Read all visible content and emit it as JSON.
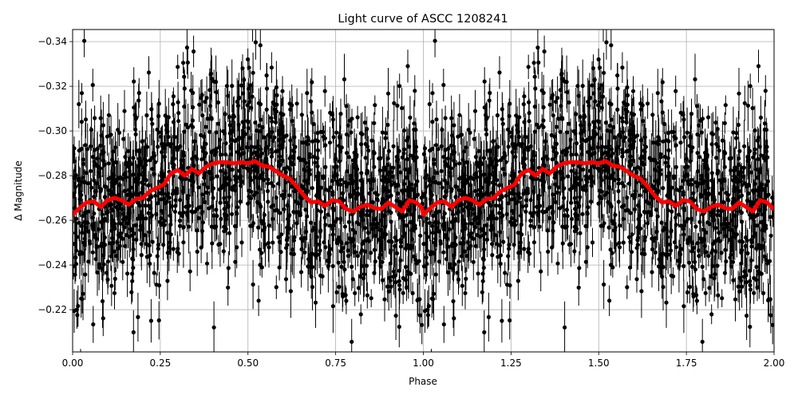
{
  "chart_data": {
    "type": "scatter",
    "title": "Light curve of ASCC 1208241",
    "xlabel": "Phase",
    "ylabel": "Δ Magnitude",
    "xlim": [
      0.0,
      2.0
    ],
    "ylim": [
      -0.3454,
      -0.2011
    ],
    "y_inverted": true,
    "grid": true,
    "legend": null,
    "xticks": [
      0.0,
      0.25,
      0.5,
      0.75,
      1.0,
      1.25,
      1.5,
      1.75,
      2.0
    ],
    "xtick_labels": [
      "0.00",
      "0.25",
      "0.50",
      "0.75",
      "1.00",
      "1.25",
      "1.50",
      "1.75",
      "2.00"
    ],
    "yticks": [
      -0.34,
      -0.32,
      -0.3,
      -0.28,
      -0.26,
      -0.24,
      -0.22
    ],
    "ytick_labels": [
      "−0.34",
      "−0.32",
      "−0.30",
      "−0.28",
      "−0.26",
      "−0.24",
      "−0.22"
    ],
    "series": [
      {
        "name": "observations",
        "kind": "errorbar-scatter",
        "color": "#000000",
        "description": "Dense phase-folded photometry with vertical error bars, scatter approximately -0.345 to -0.201 mag, repeated for phase 0-1 and 1-2",
        "n_points_estimate": 3000,
        "mean_level": -0.272,
        "scatter_sigma": 0.022
      },
      {
        "name": "binned model",
        "kind": "line",
        "color": "#ff0000",
        "linewidth": 5,
        "x": [
          0.0,
          0.02,
          0.04,
          0.06,
          0.08,
          0.1,
          0.12,
          0.14,
          0.16,
          0.18,
          0.2,
          0.22,
          0.24,
          0.26,
          0.28,
          0.3,
          0.32,
          0.34,
          0.36,
          0.38,
          0.4,
          0.42,
          0.44,
          0.46,
          0.48,
          0.5,
          0.52,
          0.54,
          0.56,
          0.58,
          0.6,
          0.62,
          0.64,
          0.66,
          0.68,
          0.7,
          0.72,
          0.74,
          0.76,
          0.78,
          0.8,
          0.82,
          0.84,
          0.86,
          0.88,
          0.9,
          0.92,
          0.94,
          0.96,
          0.98,
          1.0
        ],
        "y": [
          -0.2625,
          -0.2655,
          -0.268,
          -0.2685,
          -0.266,
          -0.269,
          -0.27,
          -0.269,
          -0.267,
          -0.2695,
          -0.27,
          -0.273,
          -0.2745,
          -0.276,
          -0.281,
          -0.2825,
          -0.28,
          -0.283,
          -0.281,
          -0.284,
          -0.2855,
          -0.286,
          -0.286,
          -0.2855,
          -0.286,
          -0.2855,
          -0.2865,
          -0.2845,
          -0.284,
          -0.282,
          -0.28,
          -0.2785,
          -0.275,
          -0.271,
          -0.268,
          -0.2685,
          -0.2665,
          -0.269,
          -0.2685,
          -0.265,
          -0.264,
          -0.266,
          -0.267,
          -0.2655,
          -0.265,
          -0.268,
          -0.266,
          -0.264,
          -0.269,
          -0.268,
          -0.265
        ],
        "periodic": true,
        "period_in_phase": 1.0
      }
    ]
  }
}
